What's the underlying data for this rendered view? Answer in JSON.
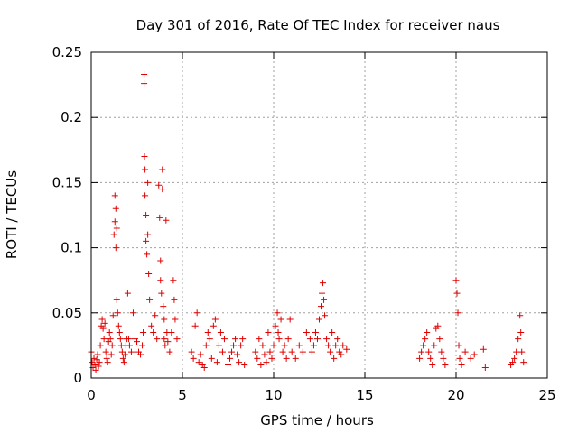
{
  "chart_data": {
    "type": "scatter",
    "title": "Day 301 of 2016, Rate Of TEC Index for receiver naus",
    "xlabel": "GPS time / hours",
    "ylabel": "ROTI / TECUs",
    "xlim": [
      0,
      25
    ],
    "ylim": [
      0,
      0.25
    ],
    "xticks": [
      0,
      5,
      10,
      15,
      20,
      25
    ],
    "xtick_labels": [
      "0",
      "5",
      "10",
      "15",
      "20",
      "25"
    ],
    "yticks": [
      0,
      0.05,
      0.1,
      0.15,
      0.2,
      0.25
    ],
    "ytick_labels": [
      "0",
      "0.05",
      "0.1",
      "0.15",
      "0.2",
      "0.25"
    ],
    "grid": true,
    "marker": "+",
    "marker_color": "#e00000",
    "series": [
      {
        "name": "ROTI",
        "points": [
          [
            0.0,
            0.02
          ],
          [
            0.05,
            0.012
          ],
          [
            0.1,
            0.008
          ],
          [
            0.15,
            0.015
          ],
          [
            0.2,
            0.01
          ],
          [
            0.25,
            0.006
          ],
          [
            0.3,
            0.014
          ],
          [
            0.35,
            0.018
          ],
          [
            0.4,
            0.009
          ],
          [
            0.45,
            0.012
          ],
          [
            0.5,
            0.025
          ],
          [
            0.55,
            0.04
          ],
          [
            0.6,
            0.045
          ],
          [
            0.65,
            0.038
          ],
          [
            0.7,
            0.03
          ],
          [
            0.75,
            0.042
          ],
          [
            0.8,
            0.02
          ],
          [
            0.85,
            0.015
          ],
          [
            0.9,
            0.012
          ],
          [
            0.95,
            0.028
          ],
          [
            1.0,
            0.035
          ],
          [
            1.05,
            0.03
          ],
          [
            1.1,
            0.018
          ],
          [
            1.15,
            0.025
          ],
          [
            1.2,
            0.048
          ],
          [
            1.25,
            0.11
          ],
          [
            1.3,
            0.12
          ],
          [
            1.3,
            0.14
          ],
          [
            1.35,
            0.13
          ],
          [
            1.35,
            0.1
          ],
          [
            1.4,
            0.115
          ],
          [
            1.4,
            0.06
          ],
          [
            1.45,
            0.05
          ],
          [
            1.5,
            0.04
          ],
          [
            1.55,
            0.035
          ],
          [
            1.6,
            0.03
          ],
          [
            1.65,
            0.025
          ],
          [
            1.7,
            0.02
          ],
          [
            1.75,
            0.015
          ],
          [
            1.8,
            0.012
          ],
          [
            1.85,
            0.018
          ],
          [
            1.9,
            0.025
          ],
          [
            1.95,
            0.03
          ],
          [
            2.0,
            0.065
          ],
          [
            2.05,
            0.03
          ],
          [
            2.1,
            0.025
          ],
          [
            2.2,
            0.02
          ],
          [
            2.3,
            0.05
          ],
          [
            2.4,
            0.03
          ],
          [
            2.5,
            0.028
          ],
          [
            2.6,
            0.02
          ],
          [
            2.7,
            0.018
          ],
          [
            2.8,
            0.025
          ],
          [
            2.85,
            0.035
          ],
          [
            2.9,
            0.233
          ],
          [
            2.9,
            0.226
          ],
          [
            2.92,
            0.17
          ],
          [
            2.95,
            0.16
          ],
          [
            2.95,
            0.14
          ],
          [
            3.0,
            0.125
          ],
          [
            3.0,
            0.105
          ],
          [
            3.05,
            0.095
          ],
          [
            3.1,
            0.15
          ],
          [
            3.1,
            0.11
          ],
          [
            3.15,
            0.08
          ],
          [
            3.2,
            0.06
          ],
          [
            3.3,
            0.04
          ],
          [
            3.4,
            0.035
          ],
          [
            3.5,
            0.048
          ],
          [
            3.6,
            0.03
          ],
          [
            3.7,
            0.148
          ],
          [
            3.75,
            0.123
          ],
          [
            3.8,
            0.09
          ],
          [
            3.8,
            0.075
          ],
          [
            3.85,
            0.065
          ],
          [
            3.9,
            0.16
          ],
          [
            3.9,
            0.145
          ],
          [
            3.95,
            0.055
          ],
          [
            4.0,
            0.045
          ],
          [
            4.0,
            0.03
          ],
          [
            4.05,
            0.025
          ],
          [
            4.1,
            0.121
          ],
          [
            4.15,
            0.035
          ],
          [
            4.2,
            0.028
          ],
          [
            4.3,
            0.02
          ],
          [
            4.4,
            0.035
          ],
          [
            4.5,
            0.075
          ],
          [
            4.55,
            0.06
          ],
          [
            4.6,
            0.045
          ],
          [
            4.7,
            0.03
          ],
          [
            5.5,
            0.02
          ],
          [
            5.6,
            0.015
          ],
          [
            5.7,
            0.04
          ],
          [
            5.8,
            0.05
          ],
          [
            5.9,
            0.012
          ],
          [
            6.0,
            0.018
          ],
          [
            6.1,
            0.01
          ],
          [
            6.2,
            0.008
          ],
          [
            6.3,
            0.025
          ],
          [
            6.4,
            0.035
          ],
          [
            6.5,
            0.03
          ],
          [
            6.6,
            0.015
          ],
          [
            6.7,
            0.04
          ],
          [
            6.8,
            0.045
          ],
          [
            6.9,
            0.012
          ],
          [
            7.0,
            0.025
          ],
          [
            7.1,
            0.035
          ],
          [
            7.2,
            0.02
          ],
          [
            7.3,
            0.03
          ],
          [
            7.5,
            0.01
          ],
          [
            7.6,
            0.015
          ],
          [
            7.7,
            0.02
          ],
          [
            7.8,
            0.025
          ],
          [
            7.9,
            0.03
          ],
          [
            8.0,
            0.018
          ],
          [
            8.1,
            0.012
          ],
          [
            8.2,
            0.025
          ],
          [
            8.3,
            0.03
          ],
          [
            8.4,
            0.01
          ],
          [
            9.0,
            0.02
          ],
          [
            9.1,
            0.015
          ],
          [
            9.2,
            0.03
          ],
          [
            9.3,
            0.01
          ],
          [
            9.4,
            0.025
          ],
          [
            9.5,
            0.018
          ],
          [
            9.6,
            0.012
          ],
          [
            9.7,
            0.035
          ],
          [
            9.8,
            0.02
          ],
          [
            9.9,
            0.015
          ],
          [
            10.0,
            0.025
          ],
          [
            10.1,
            0.04
          ],
          [
            10.2,
            0.05
          ],
          [
            10.25,
            0.035
          ],
          [
            10.3,
            0.03
          ],
          [
            10.4,
            0.045
          ],
          [
            10.5,
            0.02
          ],
          [
            10.6,
            0.025
          ],
          [
            10.7,
            0.015
          ],
          [
            10.8,
            0.03
          ],
          [
            10.9,
            0.045
          ],
          [
            11.0,
            0.02
          ],
          [
            11.2,
            0.015
          ],
          [
            11.4,
            0.025
          ],
          [
            11.6,
            0.02
          ],
          [
            11.8,
            0.035
          ],
          [
            12.0,
            0.03
          ],
          [
            12.1,
            0.02
          ],
          [
            12.2,
            0.025
          ],
          [
            12.3,
            0.035
          ],
          [
            12.4,
            0.03
          ],
          [
            12.5,
            0.045
          ],
          [
            12.6,
            0.055
          ],
          [
            12.65,
            0.065
          ],
          [
            12.7,
            0.073
          ],
          [
            12.75,
            0.06
          ],
          [
            12.8,
            0.048
          ],
          [
            12.9,
            0.03
          ],
          [
            13.0,
            0.025
          ],
          [
            13.1,
            0.02
          ],
          [
            13.2,
            0.035
          ],
          [
            13.3,
            0.015
          ],
          [
            13.4,
            0.025
          ],
          [
            13.5,
            0.03
          ],
          [
            13.6,
            0.02
          ],
          [
            13.7,
            0.018
          ],
          [
            13.8,
            0.025
          ],
          [
            14.0,
            0.022
          ],
          [
            18.0,
            0.015
          ],
          [
            18.1,
            0.02
          ],
          [
            18.2,
            0.025
          ],
          [
            18.3,
            0.03
          ],
          [
            18.4,
            0.035
          ],
          [
            18.5,
            0.02
          ],
          [
            18.6,
            0.015
          ],
          [
            18.7,
            0.01
          ],
          [
            18.8,
            0.025
          ],
          [
            18.9,
            0.038
          ],
          [
            19.0,
            0.04
          ],
          [
            19.1,
            0.03
          ],
          [
            19.2,
            0.02
          ],
          [
            19.3,
            0.015
          ],
          [
            19.4,
            0.01
          ],
          [
            20.0,
            0.075
          ],
          [
            20.05,
            0.065
          ],
          [
            20.1,
            0.05
          ],
          [
            20.15,
            0.025
          ],
          [
            20.2,
            0.015
          ],
          [
            20.3,
            0.01
          ],
          [
            20.5,
            0.02
          ],
          [
            20.8,
            0.015
          ],
          [
            21.0,
            0.018
          ],
          [
            21.5,
            0.022
          ],
          [
            21.6,
            0.008
          ],
          [
            23.0,
            0.01
          ],
          [
            23.1,
            0.012
          ],
          [
            23.2,
            0.015
          ],
          [
            23.3,
            0.02
          ],
          [
            23.4,
            0.03
          ],
          [
            23.5,
            0.048
          ],
          [
            23.55,
            0.035
          ],
          [
            23.6,
            0.02
          ],
          [
            23.7,
            0.012
          ]
        ]
      }
    ]
  }
}
